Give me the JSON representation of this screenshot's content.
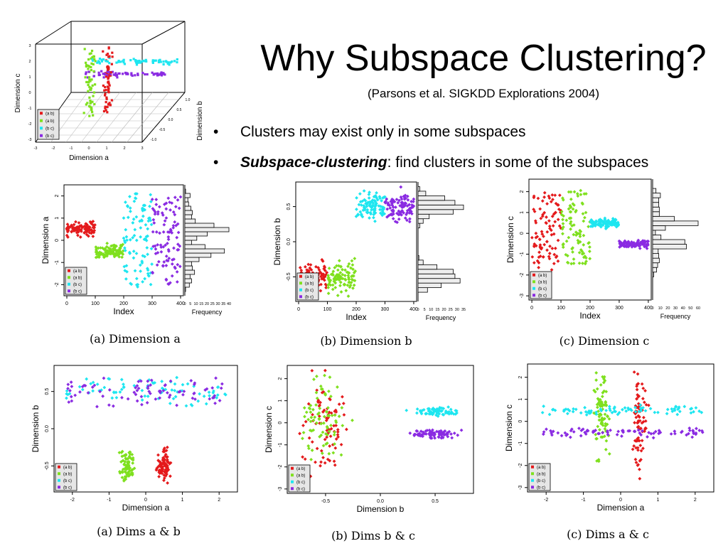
{
  "slide": {
    "title": "Why Subspace Clustering?",
    "subtitle": "(Parsons et al. SIGKDD Explorations 2004)",
    "bullets": [
      {
        "marker": "•",
        "emph": "",
        "text": "Clusters may exist only in some subspaces"
      },
      {
        "marker": "•",
        "emph": "Subspace-clustering",
        "text": ": find clusters in some of the subspaces"
      }
    ]
  },
  "colors": {
    "ab_red": "#e41a1c",
    "ab_green": "#7fe01e",
    "bc_cyan": "#1ee6f0",
    "bc_purple": "#8a2be2"
  },
  "legend": [
    "(a b)",
    "(a b)",
    "(b c)",
    "(b c)"
  ],
  "chart_data": [
    {
      "type": "scatter",
      "title": "",
      "view": "3d",
      "xlabel": "Dimension a",
      "ylabel": "Dimension c",
      "zlabel": "Dimension b",
      "x_ticks": [
        "-3",
        "-2",
        "-1",
        "0",
        "1",
        "2",
        "3"
      ],
      "y_ticks": [
        "-3",
        "-2",
        "-1",
        "0",
        "1",
        "2",
        "3"
      ],
      "z_ticks": [
        "-1.0",
        "-0.5",
        "0.0",
        "0.5",
        "1.0"
      ],
      "series": [
        {
          "name": "(a b)",
          "color": "#e41a1c"
        },
        {
          "name": "(a b)",
          "color": "#7fe01e"
        },
        {
          "name": "(b c)",
          "color": "#1ee6f0"
        },
        {
          "name": "(b c)",
          "color": "#8a2be2"
        }
      ]
    },
    {
      "type": "scatter",
      "caption": "(a) Dimension a",
      "xlabel": "Index",
      "ylabel": "Dimension a",
      "hist_label": "Frequency",
      "x_ticks": [
        "0",
        "100",
        "200",
        "300",
        "400"
      ],
      "y_ticks": [
        "-2",
        "-1",
        "0",
        "1",
        "2"
      ],
      "hist_ticks": [
        "0",
        "5",
        "10",
        "15",
        "20",
        "25",
        "30",
        "35",
        "40"
      ],
      "xlim": [
        -10,
        410
      ],
      "ylim": [
        -2.5,
        2.5
      ],
      "series": [
        {
          "name": "(a b)",
          "color": "#e41a1c",
          "x_range": [
            0,
            100
          ],
          "y_mean": 0.5,
          "y_spread": 0.13
        },
        {
          "name": "(a b)",
          "color": "#7fe01e",
          "x_range": [
            100,
            200
          ],
          "y_mean": -0.5,
          "y_spread": 0.13
        },
        {
          "name": "(b c)",
          "color": "#1ee6f0",
          "x_range": [
            200,
            300
          ],
          "y_mean": 0.0,
          "y_spread": 1.2
        },
        {
          "name": "(b c)",
          "color": "#8a2be2",
          "x_range": [
            300,
            400
          ],
          "y_mean": 0.0,
          "y_spread": 1.1
        }
      ]
    },
    {
      "type": "scatter",
      "caption": "(b) Dimension b",
      "xlabel": "Index",
      "ylabel": "Dimension b",
      "hist_label": "Frequency",
      "x_ticks": [
        "0",
        "100",
        "200",
        "300",
        "400"
      ],
      "y_ticks": [
        "-0.5",
        "0.0",
        "0.5"
      ],
      "hist_ticks": [
        "0",
        "5",
        "10",
        "15",
        "20",
        "25",
        "30",
        "35"
      ],
      "xlim": [
        -10,
        410
      ],
      "ylim": [
        -0.85,
        0.85
      ],
      "series": [
        {
          "name": "(a b)",
          "color": "#e41a1c",
          "x_range": [
            0,
            100
          ],
          "y_mean": -0.5,
          "y_spread": 0.1
        },
        {
          "name": "(a b)",
          "color": "#7fe01e",
          "x_range": [
            100,
            200
          ],
          "y_mean": -0.5,
          "y_spread": 0.1
        },
        {
          "name": "(b c)",
          "color": "#1ee6f0",
          "x_range": [
            200,
            300
          ],
          "y_mean": 0.5,
          "y_spread": 0.1
        },
        {
          "name": "(b c)",
          "color": "#8a2be2",
          "x_range": [
            300,
            400
          ],
          "y_mean": 0.5,
          "y_spread": 0.1
        }
      ]
    },
    {
      "type": "scatter",
      "caption": "(c) Dimension c",
      "xlabel": "Index",
      "ylabel": "Dimension c",
      "hist_label": "Frequency",
      "x_ticks": [
        "0",
        "100",
        "200",
        "300",
        "400"
      ],
      "y_ticks": [
        "-3",
        "-2",
        "-1",
        "0",
        "1",
        "2"
      ],
      "hist_ticks": [
        "0",
        "10",
        "20",
        "30",
        "40",
        "50",
        "60"
      ],
      "xlim": [
        -10,
        410
      ],
      "ylim": [
        -3.2,
        2.6
      ],
      "series": [
        {
          "name": "(a b)",
          "color": "#e41a1c",
          "x_range": [
            0,
            100
          ],
          "y_mean": 0.0,
          "y_spread": 1.1
        },
        {
          "name": "(a b)",
          "color": "#7fe01e",
          "x_range": [
            100,
            200
          ],
          "y_mean": 0.3,
          "y_spread": 1.0
        },
        {
          "name": "(b c)",
          "color": "#1ee6f0",
          "x_range": [
            200,
            300
          ],
          "y_mean": 0.5,
          "y_spread": 0.1
        },
        {
          "name": "(b c)",
          "color": "#8a2be2",
          "x_range": [
            300,
            400
          ],
          "y_mean": -0.5,
          "y_spread": 0.1
        }
      ]
    },
    {
      "type": "scatter",
      "caption": "(a) Dims a & b",
      "xlabel": "Dimension a",
      "ylabel": "Dimension b",
      "x_ticks": [
        "-2",
        "-1",
        "0",
        "1",
        "2"
      ],
      "y_ticks": [
        "-0.5",
        "0.0",
        "0.5"
      ],
      "xlim": [
        -2.5,
        2.5
      ],
      "ylim": [
        -0.85,
        0.85
      ],
      "series": [
        {
          "name": "(a b)",
          "color": "#e41a1c",
          "x_mean": 0.5,
          "x_spread": 0.1,
          "y_mean": -0.5,
          "y_spread": 0.1
        },
        {
          "name": "(a b)",
          "color": "#7fe01e",
          "x_mean": -0.5,
          "x_spread": 0.1,
          "y_mean": -0.5,
          "y_spread": 0.1
        },
        {
          "name": "(b c)",
          "color": "#1ee6f0",
          "x_mean": 0.0,
          "x_spread": 1.1,
          "y_mean": 0.5,
          "y_spread": 0.1
        },
        {
          "name": "(b c)",
          "color": "#8a2be2",
          "x_mean": 0.0,
          "x_spread": 1.1,
          "y_mean": 0.5,
          "y_spread": 0.1
        }
      ]
    },
    {
      "type": "scatter",
      "caption": "(b) Dims b & c",
      "xlabel": "Dimension b",
      "ylabel": "Dimension c",
      "x_ticks": [
        "-0.5",
        "0.0",
        "0.5"
      ],
      "y_ticks": [
        "-3",
        "-2",
        "-1",
        "0",
        "1",
        "2"
      ],
      "xlim": [
        -0.85,
        0.85
      ],
      "ylim": [
        -3.2,
        2.6
      ],
      "series": [
        {
          "name": "(a b)",
          "color": "#e41a1c",
          "x_mean": -0.5,
          "x_spread": 0.1,
          "y_mean": 0.0,
          "y_spread": 1.0
        },
        {
          "name": "(a b)",
          "color": "#7fe01e",
          "x_mean": -0.5,
          "x_spread": 0.1,
          "y_mean": 0.3,
          "y_spread": 0.9
        },
        {
          "name": "(b c)",
          "color": "#1ee6f0",
          "x_mean": 0.5,
          "x_spread": 0.1,
          "y_mean": 0.5,
          "y_spread": 0.1
        },
        {
          "name": "(b c)",
          "color": "#8a2be2",
          "x_mean": 0.5,
          "x_spread": 0.1,
          "y_mean": -0.5,
          "y_spread": 0.1
        }
      ]
    },
    {
      "type": "scatter",
      "caption": "(c) Dims a & c",
      "xlabel": "Dimension a",
      "ylabel": "Dimension c",
      "x_ticks": [
        "-2",
        "-1",
        "0",
        "1",
        "2"
      ],
      "y_ticks": [
        "-3",
        "-2",
        "-1",
        "0",
        "1",
        "2"
      ],
      "xlim": [
        -2.5,
        2.5
      ],
      "ylim": [
        -3.2,
        2.6
      ],
      "series": [
        {
          "name": "(a b)",
          "color": "#e41a1c",
          "x_mean": 0.5,
          "x_spread": 0.1,
          "y_mean": 0.0,
          "y_spread": 1.0
        },
        {
          "name": "(a b)",
          "color": "#7fe01e",
          "x_mean": -0.5,
          "x_spread": 0.1,
          "y_mean": 0.3,
          "y_spread": 0.9
        },
        {
          "name": "(b c)",
          "color": "#1ee6f0",
          "x_mean": 0.0,
          "x_spread": 1.1,
          "y_mean": 0.5,
          "y_spread": 0.1
        },
        {
          "name": "(b c)",
          "color": "#8a2be2",
          "x_mean": 0.0,
          "x_spread": 1.1,
          "y_mean": -0.5,
          "y_spread": 0.1
        }
      ]
    }
  ]
}
